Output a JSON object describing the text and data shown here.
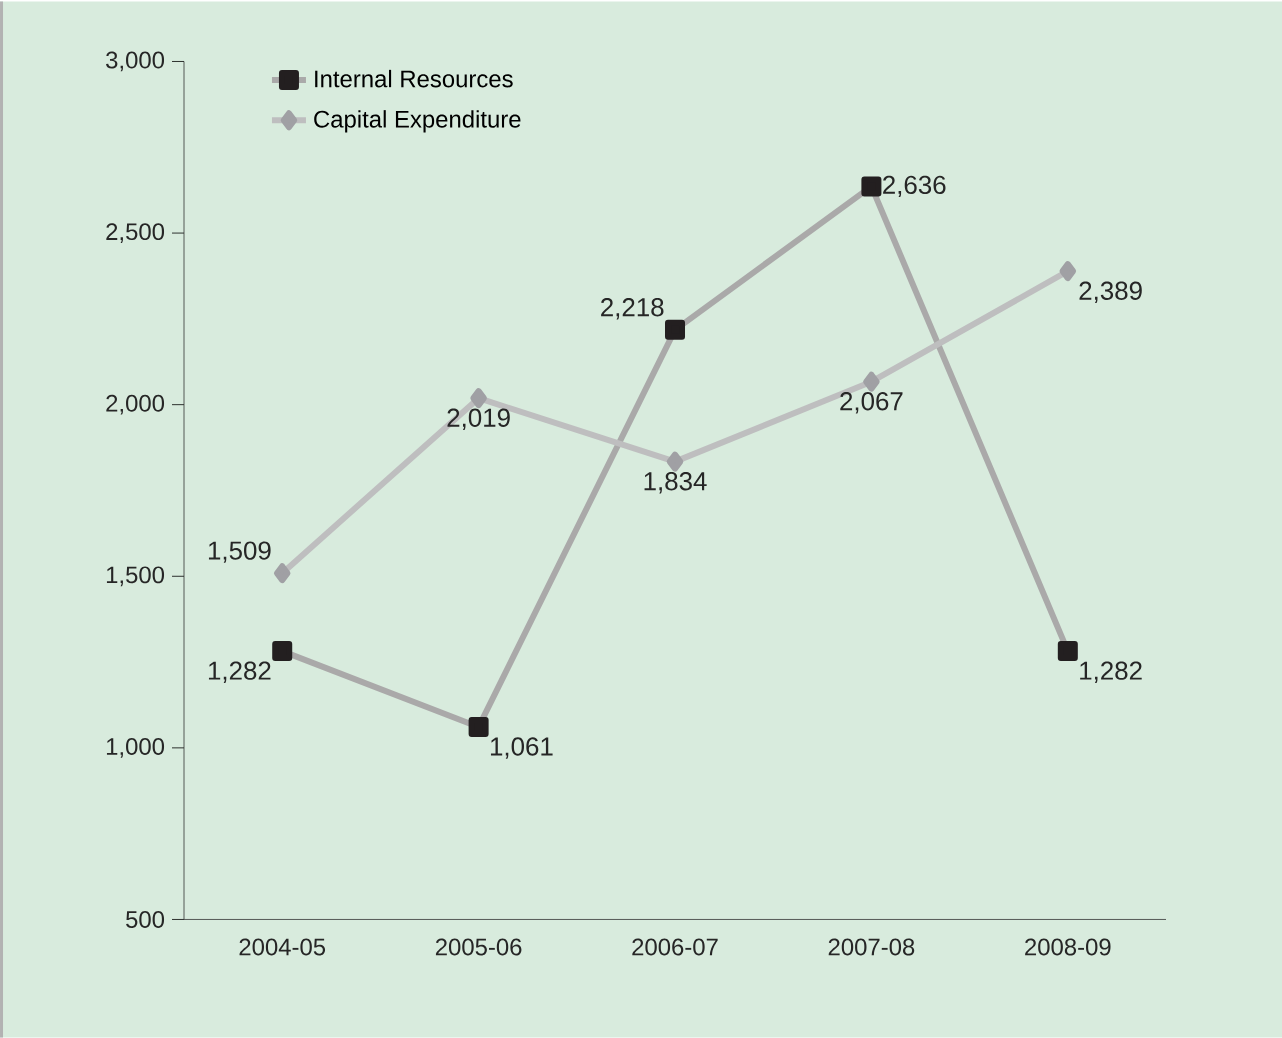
{
  "chart_data": {
    "type": "line",
    "categories": [
      "2004-05",
      "2005-06",
      "2006-07",
      "2007-08",
      "2008-09"
    ],
    "series": [
      {
        "name": "Internal Resources",
        "color": "#231f20",
        "marker": "square",
        "values": [
          1282,
          1061,
          2218,
          2636,
          1282
        ],
        "value_labels": [
          "1,282",
          "1,061",
          "2,218",
          "2,636",
          "1,282"
        ]
      },
      {
        "name": "Capital Expenditure",
        "color": "#a0a0a4",
        "marker": "diamond",
        "values": [
          1509,
          2019,
          1834,
          2067,
          2389
        ],
        "value_labels": [
          "1,509",
          "2,019",
          "1,834",
          "2,067",
          "2,389"
        ]
      }
    ],
    "ylim": [
      500,
      3000
    ],
    "yticks": [
      {
        "value": 500,
        "label": "500"
      },
      {
        "value": 1000,
        "label": "1,000"
      },
      {
        "value": 1500,
        "label": "1,500"
      },
      {
        "value": 2000,
        "label": "2,000"
      },
      {
        "value": 2500,
        "label": "2,500"
      },
      {
        "value": 3000,
        "label": "3,000"
      }
    ],
    "legend": "top left",
    "grid": false,
    "line_style": "solid"
  }
}
